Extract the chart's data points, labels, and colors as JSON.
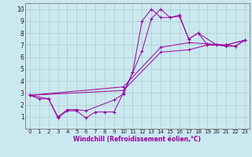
{
  "bg_color": "#cbe8f0",
  "grid_color": "#aacccc",
  "line_color": "#990099",
  "marker": "+",
  "xlabel": "Windchill (Refroidissement éolien,°C)",
  "xlim": [
    -0.5,
    23.5
  ],
  "ylim": [
    0,
    10.5
  ],
  "xticks": [
    0,
    1,
    2,
    3,
    4,
    5,
    6,
    7,
    8,
    9,
    10,
    11,
    12,
    13,
    14,
    15,
    16,
    17,
    18,
    19,
    20,
    21,
    22,
    23
  ],
  "yticks": [
    1,
    2,
    3,
    4,
    5,
    6,
    7,
    8,
    9,
    10
  ],
  "series": [
    {
      "x": [
        0,
        1,
        2,
        3,
        4,
        5,
        6,
        7,
        8,
        9,
        10,
        11,
        12,
        13,
        14,
        15,
        16,
        17,
        18,
        19,
        20,
        21,
        22,
        23
      ],
      "y": [
        2.8,
        2.5,
        2.5,
        0.9,
        1.5,
        1.5,
        0.9,
        1.4,
        1.4,
        1.4,
        3.0,
        4.7,
        9.0,
        10.0,
        9.3,
        9.3,
        9.5,
        7.5,
        8.0,
        7.0,
        7.0,
        6.9,
        6.9,
        7.4
      ]
    },
    {
      "x": [
        0,
        2,
        3,
        4,
        5,
        6,
        9,
        10,
        11,
        12,
        13,
        14,
        15,
        16,
        17,
        18,
        20,
        21,
        22,
        23
      ],
      "y": [
        2.8,
        2.5,
        1.0,
        1.6,
        1.6,
        1.5,
        2.4,
        2.9,
        4.7,
        6.5,
        9.2,
        10.0,
        9.3,
        9.4,
        7.5,
        8.0,
        7.0,
        7.0,
        6.9,
        7.4
      ]
    },
    {
      "x": [
        0,
        10,
        14,
        17,
        19,
        21,
        23
      ],
      "y": [
        2.8,
        3.2,
        6.4,
        6.6,
        7.0,
        7.0,
        7.4
      ]
    },
    {
      "x": [
        0,
        10,
        14,
        17,
        19,
        21,
        23
      ],
      "y": [
        2.8,
        3.5,
        6.8,
        7.2,
        7.1,
        7.0,
        7.4
      ]
    }
  ],
  "xlabel_fontsize": 5.5,
  "tick_fontsize": 5.0
}
